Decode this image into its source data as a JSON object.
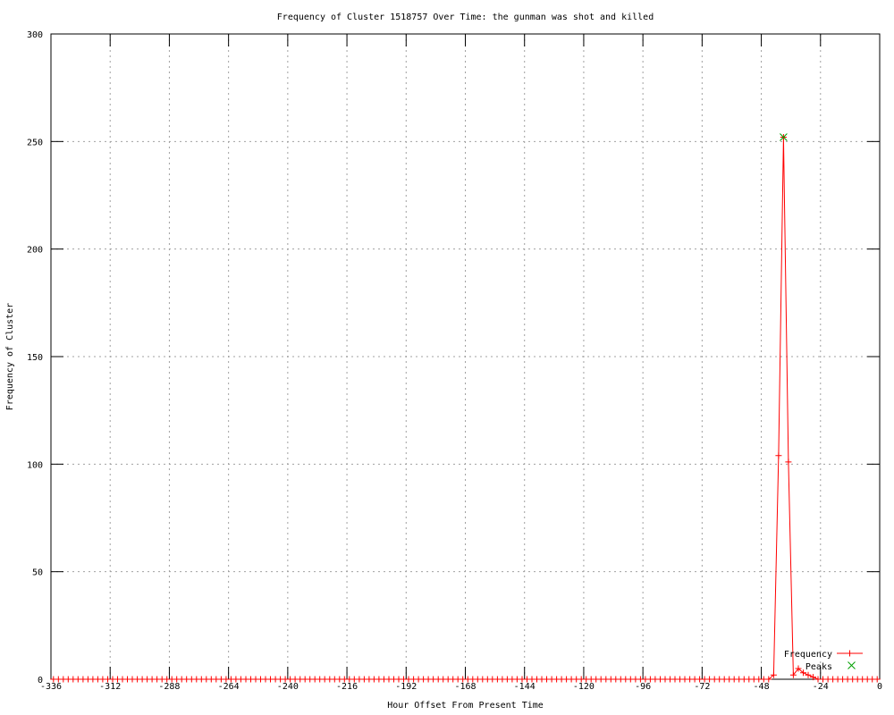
{
  "colors": {
    "frequency_series": "#ff0000",
    "peaks_series": "#00a000",
    "grid_line": "#a0a0a0",
    "axis_border": "#000000",
    "text": "#000000",
    "background": "#ffffff"
  },
  "chart_data": {
    "type": "line",
    "title": "Frequency of Cluster 1518757 Over Time: the gunman was shot and killed",
    "xlabel": "Hour Offset From Present Time",
    "ylabel": "Frequency of Cluster",
    "xlim": [
      -336,
      0
    ],
    "ylim": [
      0,
      300
    ],
    "x_ticks": [
      -336,
      -312,
      -288,
      -264,
      -240,
      -216,
      -192,
      -168,
      -144,
      -120,
      -96,
      -72,
      -48,
      -24,
      0
    ],
    "y_ticks": [
      0,
      50,
      100,
      150,
      200,
      250,
      300
    ],
    "grid": true,
    "legend_position": "bottom-right-inside",
    "series": [
      {
        "name": "Frequency",
        "style": "linespoints",
        "marker": "plus",
        "color_key": "frequency_series",
        "x_start": -335,
        "x_end": -1,
        "x_step": 2,
        "default_value": 0,
        "nonzero_values": {
          "-43": 2,
          "-41": 104,
          "-39": 252,
          "-37": 101,
          "-35": 2,
          "-33": 5,
          "-31": 3,
          "-29": 2,
          "-27": 1
        }
      },
      {
        "name": "Peaks",
        "style": "points",
        "marker": "x",
        "color_key": "peaks_series",
        "points": [
          [
            -39,
            252
          ]
        ]
      }
    ]
  }
}
